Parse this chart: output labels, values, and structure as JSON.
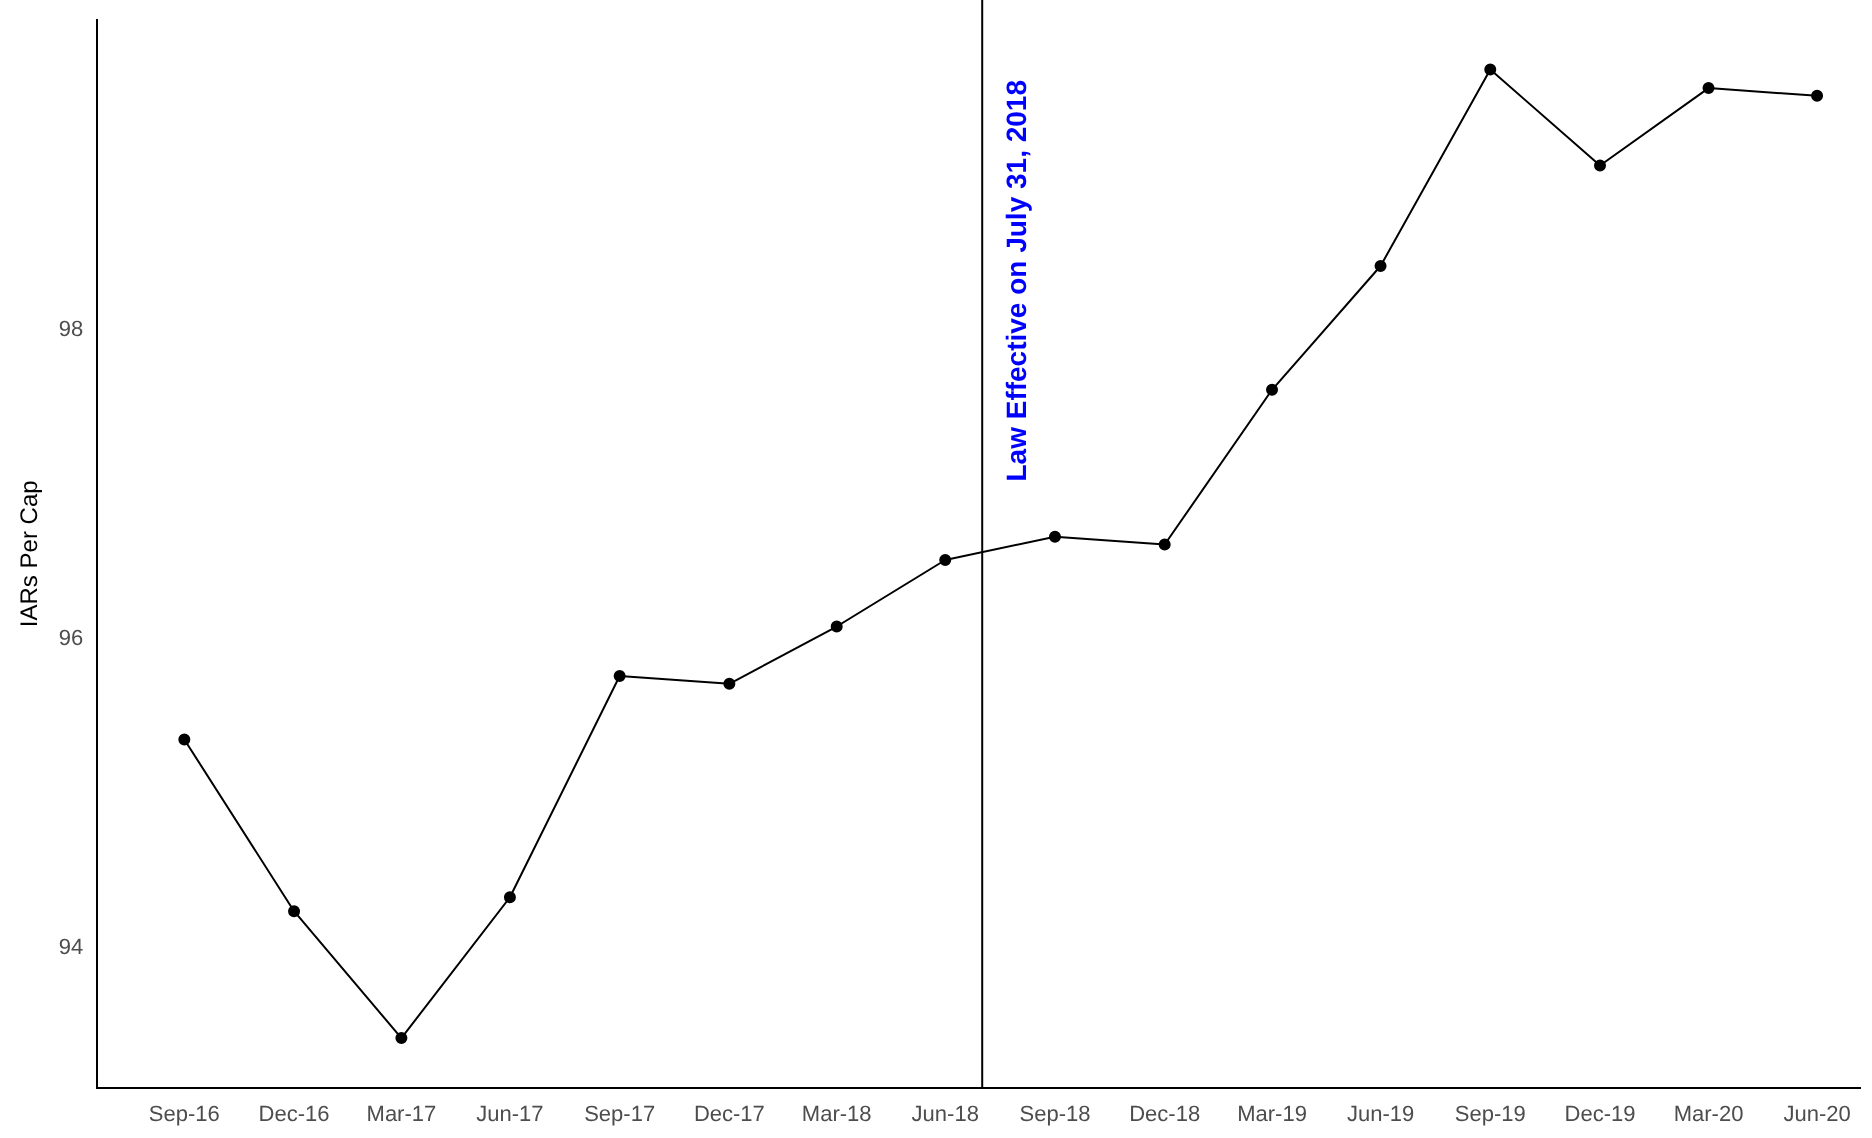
{
  "chart_data": {
    "type": "line",
    "ylabel": "IARs Per Cap",
    "x": [
      "2016-09-30",
      "2016-12-31",
      "2017-03-31",
      "2017-06-30",
      "2017-09-30",
      "2017-12-31",
      "2018-03-31",
      "2018-06-30",
      "2018-09-30",
      "2018-12-31",
      "2019-03-31",
      "2019-06-30",
      "2019-09-30",
      "2019-12-31",
      "2020-03-31",
      "2020-06-30"
    ],
    "series": [
      {
        "color": "#000000",
        "values": [
          95.35,
          94.24,
          93.42,
          94.33,
          95.76,
          95.71,
          96.08,
          96.51,
          96.66,
          96.61,
          97.61,
          98.41,
          99.68,
          99.06,
          99.56,
          99.51
        ]
      }
    ],
    "xlim": [
      "2016-07-19",
      "2020-08-05"
    ],
    "xticks": [
      {
        "value": "2016-09-30",
        "label": "Sep-16"
      },
      {
        "value": "2016-12-31",
        "label": "Dec-16"
      },
      {
        "value": "2017-03-31",
        "label": "Mar-17"
      },
      {
        "value": "2017-06-30",
        "label": "Jun-17"
      },
      {
        "value": "2017-09-30",
        "label": "Sep-17"
      },
      {
        "value": "2017-12-31",
        "label": "Dec-17"
      },
      {
        "value": "2018-03-31",
        "label": "Mar-18"
      },
      {
        "value": "2018-06-30",
        "label": "Jun-18"
      },
      {
        "value": "2018-09-30",
        "label": "Sep-18"
      },
      {
        "value": "2018-12-31",
        "label": "Dec-18"
      },
      {
        "value": "2019-03-31",
        "label": "Mar-19"
      },
      {
        "value": "2019-06-30",
        "label": "Jun-19"
      },
      {
        "value": "2019-09-30",
        "label": "Sep-19"
      },
      {
        "value": "2019-12-31",
        "label": "Dec-19"
      },
      {
        "value": "2020-03-31",
        "label": "Mar-20"
      },
      {
        "value": "2020-06-30",
        "label": "Jun-20"
      }
    ],
    "ylim": [
      93.1,
      100
    ],
    "yticks": [
      94,
      96,
      98
    ],
    "ref_lines": [
      {
        "axis": "x",
        "value": "2018-07-31",
        "label": "Law Effective on July 31, 2018",
        "color": "#000000"
      }
    ],
    "grid": false,
    "legend": false,
    "marker": "circle",
    "line_style": "solid"
  }
}
